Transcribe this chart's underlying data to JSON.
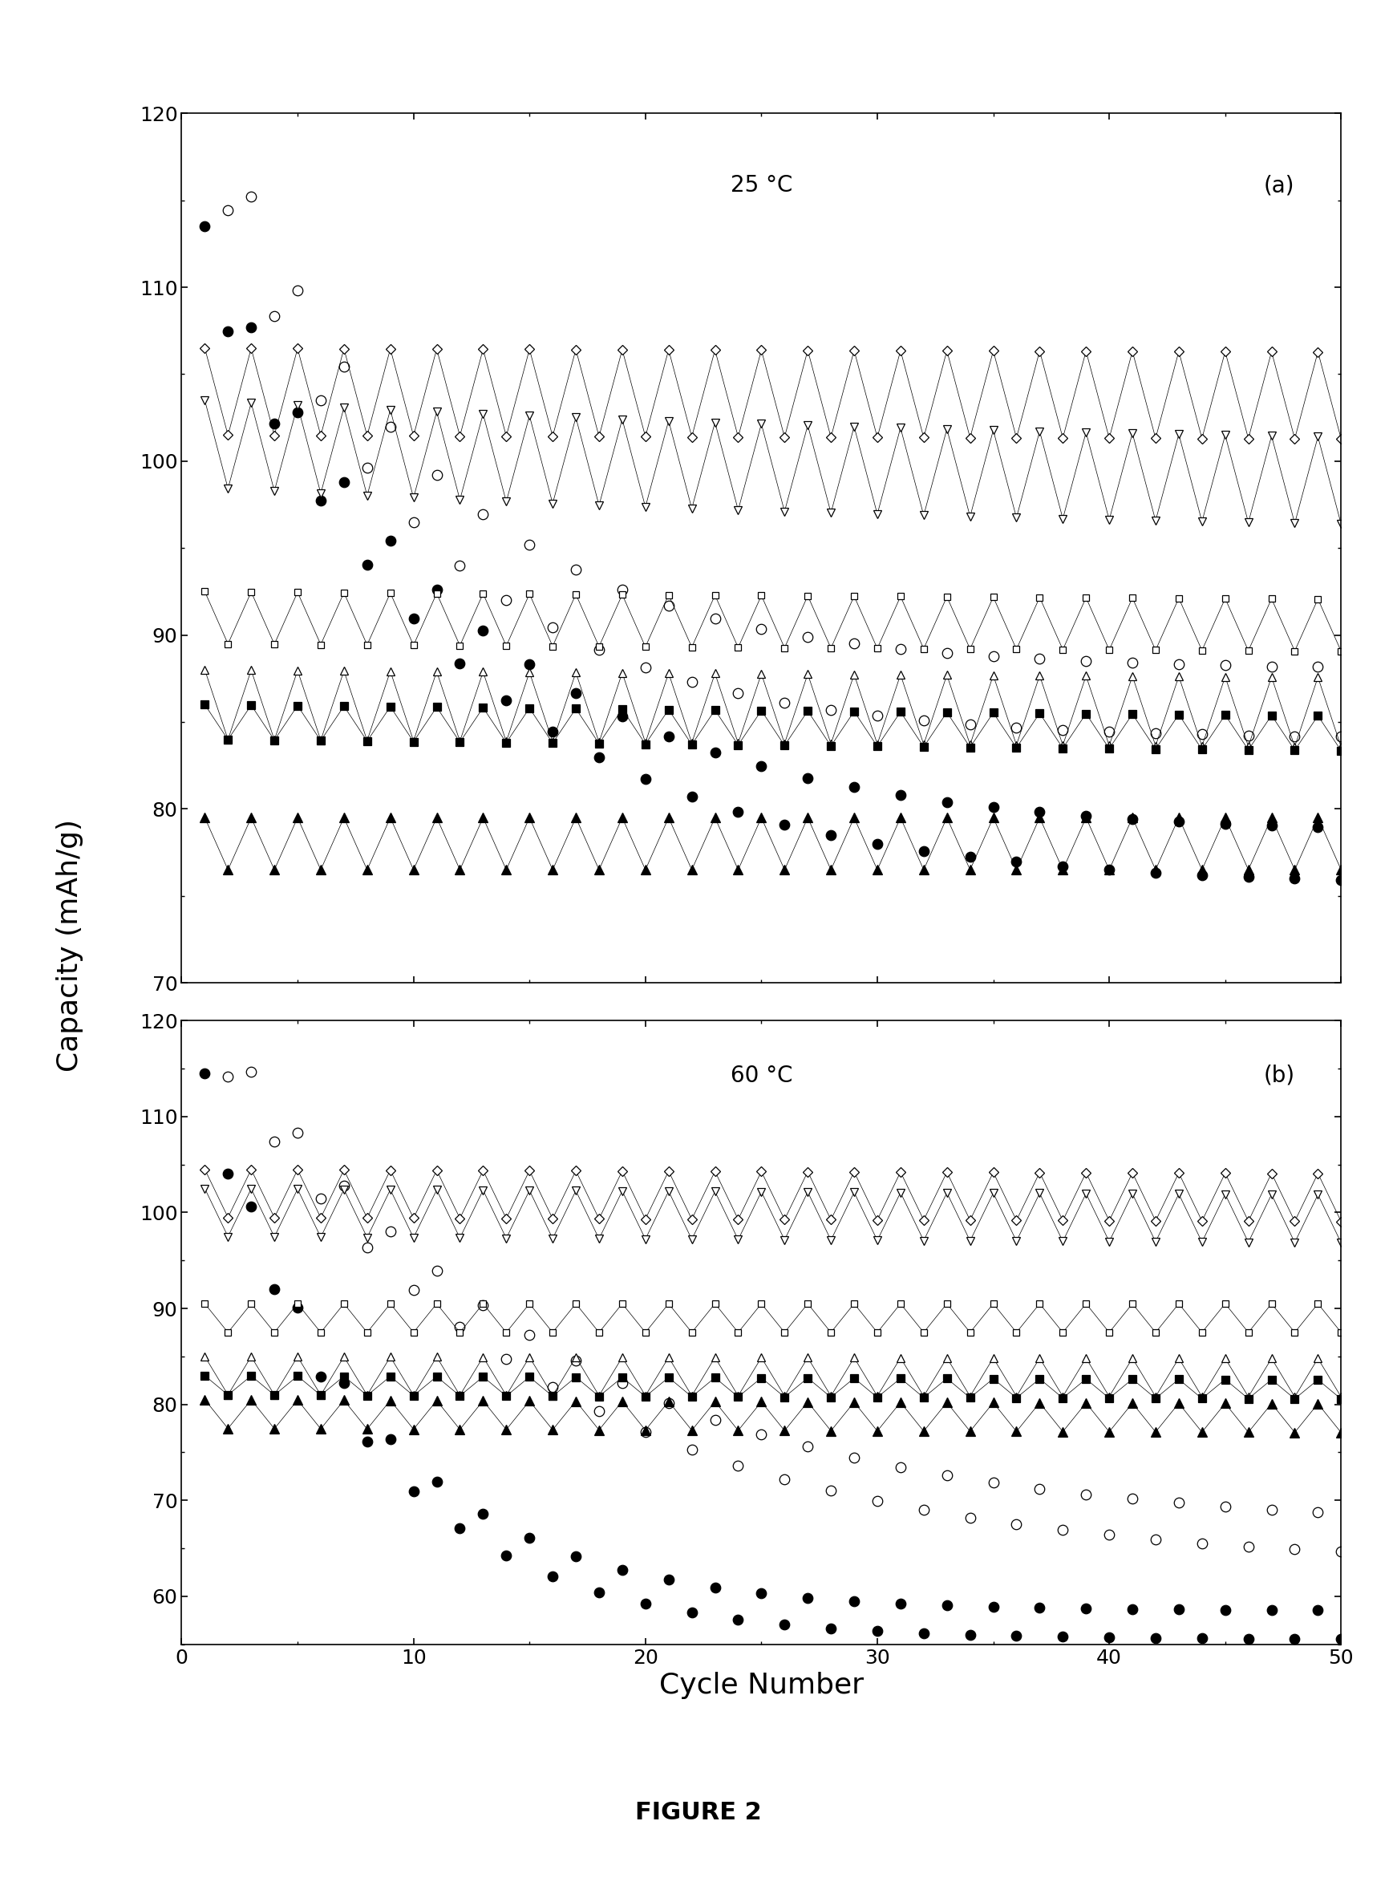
{
  "n_cycles": 50,
  "panel_a_annotation": "25 °C",
  "panel_b_annotation": "60 °C",
  "panel_a_label": "(a)",
  "panel_b_label": "(b)",
  "xlabel": "Cycle Number",
  "ylabel": "Capacity (mAh/g)",
  "figure_caption": "FIGURE 2",
  "xlim": [
    0,
    50
  ],
  "ylim_a": [
    70,
    120
  ],
  "ylim_b": [
    55,
    120
  ],
  "yticks_a": [
    70,
    80,
    90,
    100,
    110,
    120
  ],
  "yticks_b": [
    60,
    70,
    80,
    90,
    100,
    110,
    120
  ],
  "xticks": [
    0,
    10,
    20,
    30,
    40,
    50
  ],
  "series_a": [
    {
      "y0": 120,
      "yf": 86,
      "tau": 9,
      "osc": 2.0,
      "marker": "o",
      "filled": false,
      "ms": 9,
      "lw": 0.0
    },
    {
      "y0": 112,
      "yf": 77,
      "tau": 11,
      "osc": 1.5,
      "marker": "o",
      "filled": true,
      "ms": 9,
      "lw": 0.0
    },
    {
      "y0": 104,
      "yf": 103,
      "tau": 200,
      "osc": 2.5,
      "marker": "D",
      "filled": false,
      "ms": 6,
      "lw": 0.5
    },
    {
      "y0": 101,
      "yf": 98,
      "tau": 40,
      "osc": 2.5,
      "marker": "v",
      "filled": false,
      "ms": 7,
      "lw": 0.5
    },
    {
      "y0": 91,
      "yf": 89,
      "tau": 200,
      "osc": 1.5,
      "marker": "s",
      "filled": false,
      "ms": 6,
      "lw": 0.5
    },
    {
      "y0": 86,
      "yf": 84,
      "tau": 200,
      "osc": 2.0,
      "marker": "^",
      "filled": false,
      "ms": 7,
      "lw": 0.5
    },
    {
      "y0": 85,
      "yf": 82,
      "tau": 200,
      "osc": 1.0,
      "marker": "s",
      "filled": true,
      "ms": 7,
      "lw": 0.5
    },
    {
      "y0": 78,
      "yf": 78,
      "tau": 200,
      "osc": 1.5,
      "marker": "^",
      "filled": true,
      "ms": 8,
      "lw": 0.5
    }
  ],
  "series_b": [
    {
      "y0": 120,
      "yf": 65,
      "tau": 14,
      "osc": 2.0,
      "marker": "o",
      "filled": false,
      "ms": 9,
      "lw": 0.0
    },
    {
      "y0": 113,
      "yf": 57,
      "tau": 7,
      "osc": 1.5,
      "marker": "o",
      "filled": true,
      "ms": 9,
      "lw": 0.0
    },
    {
      "y0": 102,
      "yf": 100,
      "tau": 200,
      "osc": 2.5,
      "marker": "D",
      "filled": false,
      "ms": 6,
      "lw": 0.5
    },
    {
      "y0": 100,
      "yf": 97,
      "tau": 200,
      "osc": 2.5,
      "marker": "v",
      "filled": false,
      "ms": 7,
      "lw": 0.5
    },
    {
      "y0": 89,
      "yf": 89,
      "tau": 200,
      "osc": 1.5,
      "marker": "s",
      "filled": false,
      "ms": 6,
      "lw": 0.5
    },
    {
      "y0": 83,
      "yf": 82,
      "tau": 200,
      "osc": 2.0,
      "marker": "^",
      "filled": false,
      "ms": 7,
      "lw": 0.5
    },
    {
      "y0": 82,
      "yf": 80,
      "tau": 200,
      "osc": 1.0,
      "marker": "s",
      "filled": true,
      "ms": 7,
      "lw": 0.5
    },
    {
      "y0": 79,
      "yf": 77,
      "tau": 200,
      "osc": 1.5,
      "marker": "^",
      "filled": true,
      "ms": 8,
      "lw": 0.5
    }
  ],
  "font_tick": 18,
  "font_label": 26,
  "font_annot": 20,
  "font_caption": 22
}
